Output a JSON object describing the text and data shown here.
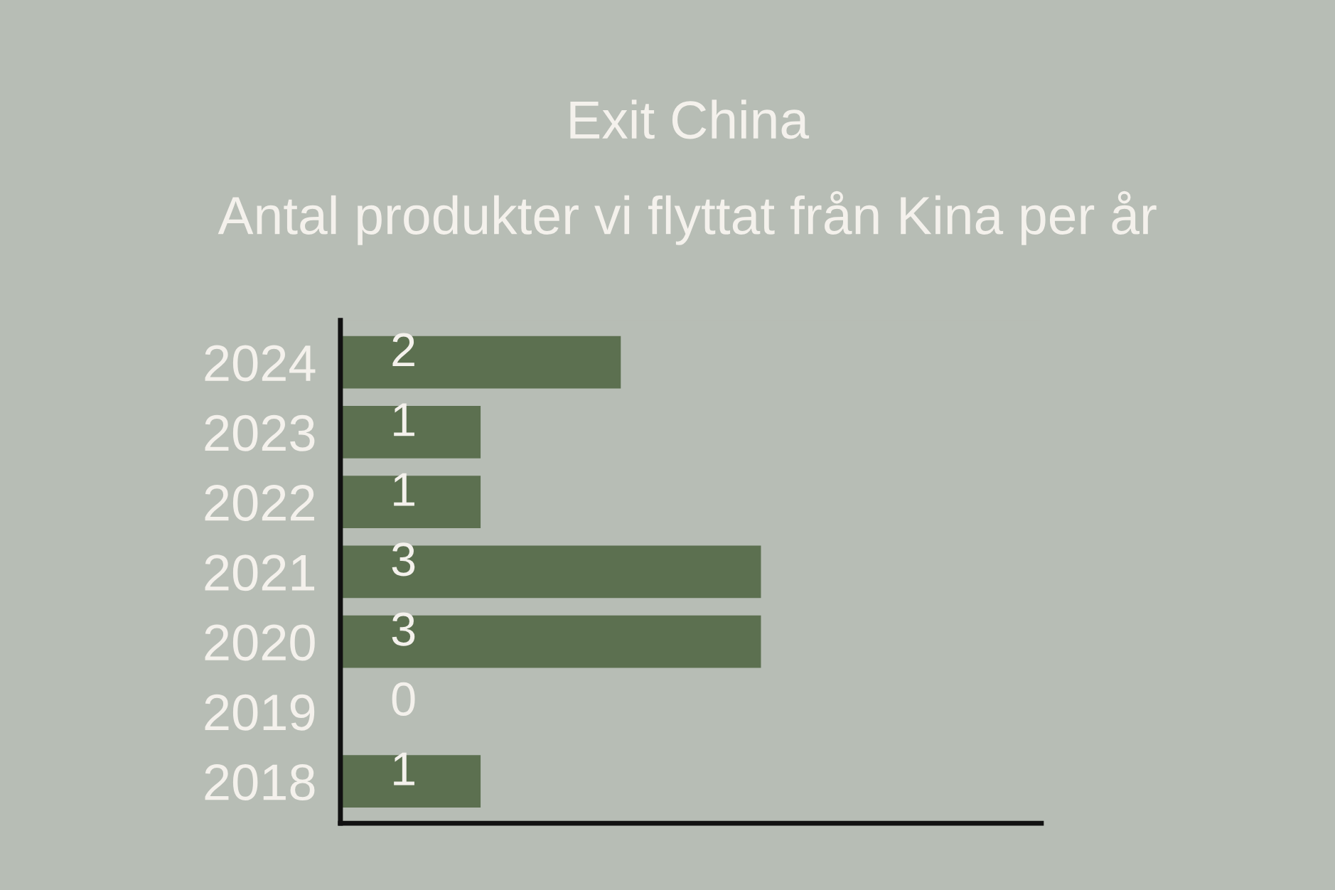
{
  "chart_data": {
    "type": "bar",
    "orientation": "horizontal",
    "title": "Exit China",
    "subtitle": "Antal produkter vi flyttat från Kina per år",
    "categories": [
      "2024",
      "2023",
      "2022",
      "2021",
      "2020",
      "2019",
      "2018"
    ],
    "values": [
      2,
      1,
      1,
      3,
      3,
      0,
      1
    ],
    "color": "#5c7050",
    "data_labels": true,
    "xlim": [
      0,
      5
    ],
    "tick_labels": "y",
    "grid": false,
    "legend": false
  }
}
